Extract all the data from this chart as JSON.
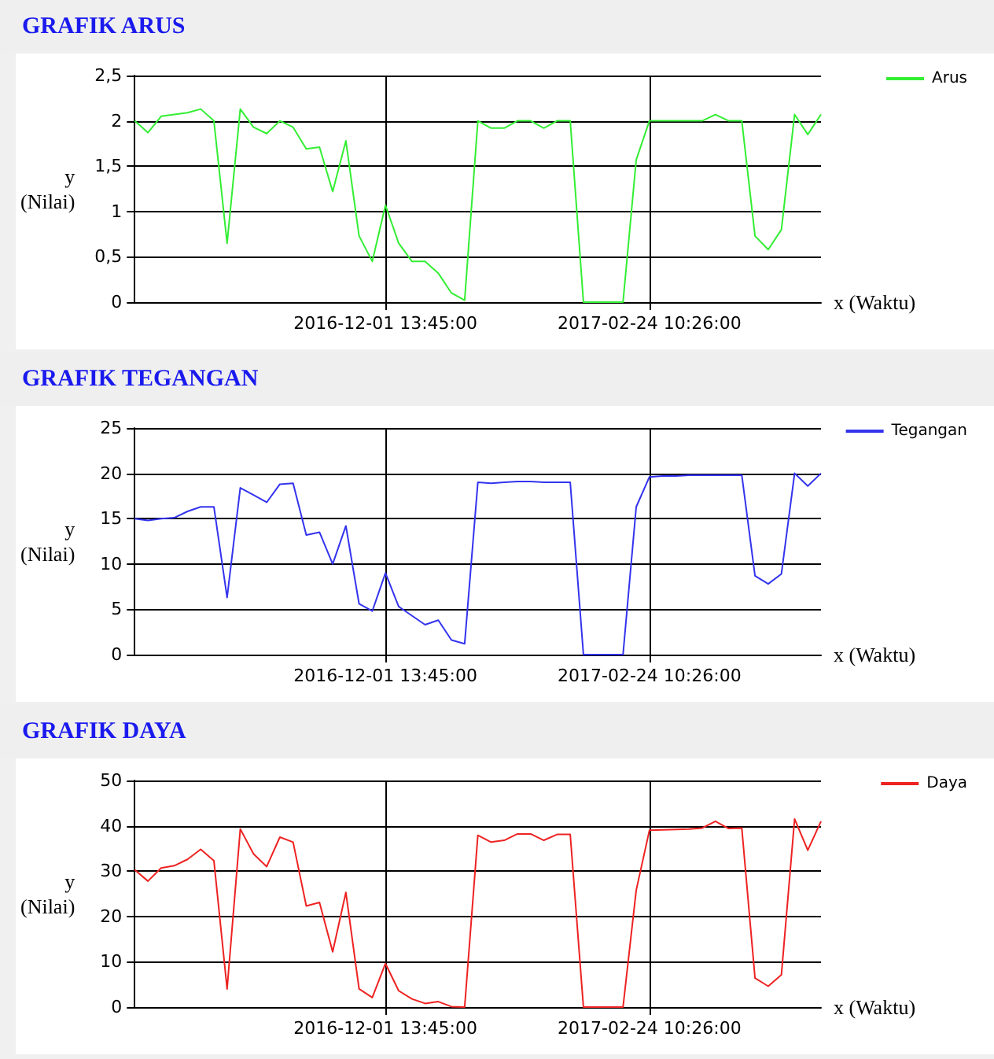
{
  "chart_data": [
    {
      "type": "line",
      "title": "GRAFIK ARUS",
      "xlabel": "x (Waktu)",
      "ylabel": "y (Nilai)",
      "categories": [
        null,
        null,
        null,
        null,
        null,
        null,
        null,
        null,
        null,
        null,
        null,
        null,
        null,
        null,
        null,
        null,
        null,
        null,
        null,
        "2016-12-01 13:45:00",
        null,
        null,
        null,
        null,
        null,
        null,
        null,
        null,
        null,
        null,
        null,
        null,
        null,
        null,
        null,
        null,
        null,
        null,
        null,
        "2017-02-24 10:26:00",
        null,
        null,
        null,
        null,
        null,
        null,
        null,
        null,
        null,
        null,
        null,
        null,
        null
      ],
      "series": [
        {
          "name": "Arus",
          "color": "#33ee33",
          "values": [
            2.0,
            1.87,
            2.05,
            2.07,
            2.09,
            2.13,
            2.0,
            0.65,
            2.13,
            1.93,
            1.86,
            2.0,
            1.93,
            1.69,
            1.71,
            1.22,
            1.78,
            0.73,
            0.45,
            1.07,
            0.65,
            0.45,
            0.45,
            0.32,
            0.1,
            0.02,
            2.0,
            1.92,
            1.92,
            2.0,
            2.0,
            1.92,
            2.0,
            2.0,
            0,
            0,
            0,
            0,
            1.57,
            2.0,
            2.0,
            2.0,
            2.0,
            2.0,
            2.07,
            2.0,
            2.0,
            0.73,
            0.58,
            0.8,
            2.07,
            1.85,
            2.07
          ]
        }
      ],
      "ylim": [
        0,
        2.5
      ],
      "yticks": [
        0,
        {
          "value": 0.5,
          "label": "0,5"
        },
        1,
        {
          "value": 1.5,
          "label": "1,5"
        },
        2,
        {
          "value": 2.5,
          "label": "2,5"
        }
      ],
      "grid": true,
      "legend": "top right",
      "marker": "none"
    },
    {
      "type": "line",
      "title": "GRAFIK TEGANGAN",
      "xlabel": "x (Waktu)",
      "ylabel": "y (Nilai)",
      "categories": [
        null,
        null,
        null,
        null,
        null,
        null,
        null,
        null,
        null,
        null,
        null,
        null,
        null,
        null,
        null,
        null,
        null,
        null,
        null,
        "2016-12-01 13:45:00",
        null,
        null,
        null,
        null,
        null,
        null,
        null,
        null,
        null,
        null,
        null,
        null,
        null,
        null,
        null,
        null,
        null,
        null,
        null,
        "2017-02-24 10:26:00",
        null,
        null,
        null,
        null,
        null,
        null,
        null,
        null,
        null,
        null,
        null,
        null,
        null
      ],
      "series": [
        {
          "name": "Tegangan",
          "color": "#3333ee",
          "values": [
            15.0,
            14.8,
            15.0,
            15.1,
            15.8,
            16.3,
            16.3,
            6.3,
            18.4,
            17.6,
            16.8,
            18.8,
            18.9,
            13.2,
            13.5,
            10.0,
            14.2,
            5.6,
            4.8,
            9.0,
            5.3,
            4.3,
            3.3,
            3.8,
            1.6,
            1.2,
            19.0,
            18.9,
            19.0,
            19.1,
            19.1,
            19.0,
            19.0,
            19.0,
            0,
            0,
            0,
            0,
            16.3,
            19.6,
            19.7,
            19.7,
            19.8,
            19.8,
            19.8,
            19.8,
            19.8,
            8.7,
            7.8,
            8.9,
            20.0,
            18.6,
            20.0
          ]
        }
      ],
      "ylim": [
        0,
        25
      ],
      "yticks": [
        0,
        5,
        10,
        15,
        20,
        25
      ],
      "grid": true,
      "legend": "top right",
      "marker": "none"
    },
    {
      "type": "line",
      "title": "GRAFIK DAYA",
      "xlabel": "x (Waktu)",
      "ylabel": "y (Nilai)",
      "categories": [
        null,
        null,
        null,
        null,
        null,
        null,
        null,
        null,
        null,
        null,
        null,
        null,
        null,
        null,
        null,
        null,
        null,
        null,
        null,
        "2016-12-01 13:45:00",
        null,
        null,
        null,
        null,
        null,
        null,
        null,
        null,
        null,
        null,
        null,
        null,
        null,
        null,
        null,
        null,
        null,
        null,
        null,
        "2017-02-24 10:26:00",
        null,
        null,
        null,
        null,
        null,
        null,
        null,
        null,
        null,
        null,
        null,
        null,
        null
      ],
      "series": [
        {
          "name": "Daya",
          "color": "#ee2222",
          "values": [
            30.3,
            27.8,
            30.7,
            31.2,
            32.6,
            34.8,
            32.3,
            4.0,
            39.3,
            33.8,
            31.0,
            37.5,
            36.4,
            22.3,
            23.1,
            12.2,
            25.3,
            4.0,
            2.1,
            9.6,
            3.6,
            1.8,
            0.8,
            1.2,
            0.1,
            0,
            37.9,
            36.4,
            36.8,
            38.2,
            38.2,
            36.8,
            38.1,
            38.1,
            0,
            0,
            0,
            0,
            25.8,
            39.0,
            39.1,
            39.2,
            39.3,
            39.5,
            41.0,
            39.4,
            39.5,
            6.4,
            4.6,
            7.1,
            41.5,
            34.6,
            41.0
          ]
        }
      ],
      "ylim": [
        0,
        50
      ],
      "yticks": [
        0,
        10,
        20,
        30,
        40,
        50
      ],
      "grid": true,
      "legend": "top right",
      "marker": "none"
    }
  ]
}
